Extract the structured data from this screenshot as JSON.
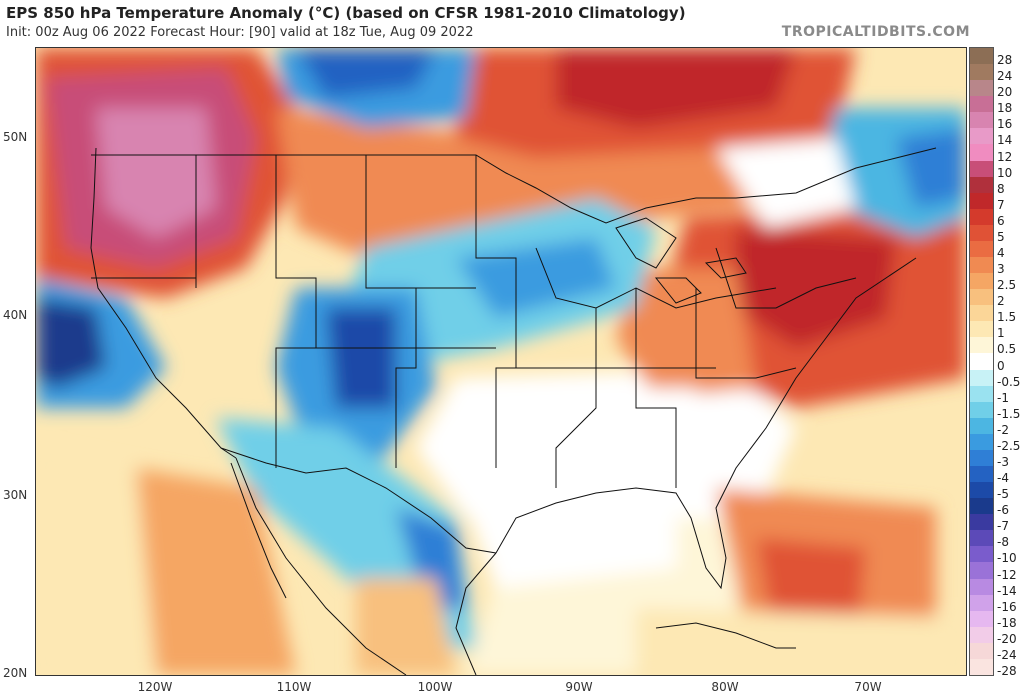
{
  "header": {
    "title": "EPS 850 hPa Temperature Anomaly (°C) (based on CFSR 1981-2010 Climatology)",
    "subtitle": "Init: 00z Aug 06 2022   Forecast Hour: [90]   valid at 18z Tue, Aug 09 2022",
    "brand": "TROPICALTIDBITS.COM"
  },
  "axes": {
    "latitudes": [
      "50N",
      "40N",
      "30N",
      "20N"
    ],
    "longitudes": [
      "120W",
      "110W",
      "100W",
      "90W",
      "80W",
      "70W"
    ]
  },
  "legend": {
    "levels": [
      {
        "label": "28",
        "color": "#8c6e55"
      },
      {
        "label": "24",
        "color": "#a07a60"
      },
      {
        "label": "20",
        "color": "#b8868a"
      },
      {
        "label": "18",
        "color": "#c86f96"
      },
      {
        "label": "16",
        "color": "#d884b0"
      },
      {
        "label": "14",
        "color": "#e89ac8"
      },
      {
        "label": "12",
        "color": "#f08cc0"
      },
      {
        "label": "10",
        "color": "#c84e78"
      },
      {
        "label": "8",
        "color": "#b0303c"
      },
      {
        "label": "7",
        "color": "#c0282a"
      },
      {
        "label": "6",
        "color": "#d43a2c"
      },
      {
        "label": "5",
        "color": "#e05236"
      },
      {
        "label": "4",
        "color": "#ea6c42"
      },
      {
        "label": "3",
        "color": "#f08a52"
      },
      {
        "label": "2.5",
        "color": "#f5a664"
      },
      {
        "label": "2",
        "color": "#f8c07e"
      },
      {
        "label": "1.5",
        "color": "#fbd698"
      },
      {
        "label": "1",
        "color": "#fde8b4"
      },
      {
        "label": "0.5",
        "color": "#fef6d8"
      },
      {
        "label": "0",
        "color": "#ffffff"
      },
      {
        "label": "-0.5",
        "color": "#c8f2f6"
      },
      {
        "label": "-1",
        "color": "#9ae2f0"
      },
      {
        "label": "-1.5",
        "color": "#70cfe8"
      },
      {
        "label": "-2",
        "color": "#4cb6e2"
      },
      {
        "label": "-2.5",
        "color": "#3a9be0"
      },
      {
        "label": "-3",
        "color": "#2f7fd6"
      },
      {
        "label": "-4",
        "color": "#2462c2"
      },
      {
        "label": "-5",
        "color": "#1c4aa8"
      },
      {
        "label": "-6",
        "color": "#1a3a8c"
      },
      {
        "label": "-7",
        "color": "#3a3aa0"
      },
      {
        "label": "-8",
        "color": "#5c4ab8"
      },
      {
        "label": "-10",
        "color": "#7a5ccc"
      },
      {
        "label": "-12",
        "color": "#9a72d8"
      },
      {
        "label": "-14",
        "color": "#b88ae2"
      },
      {
        "label": "-16",
        "color": "#d0a2ea"
      },
      {
        "label": "-18",
        "color": "#e6b8f0"
      },
      {
        "label": "-20",
        "color": "#f2cce8"
      },
      {
        "label": "-24",
        "color": "#f6d8d8"
      },
      {
        "label": "-28",
        "color": "#fae4e0"
      }
    ]
  }
}
